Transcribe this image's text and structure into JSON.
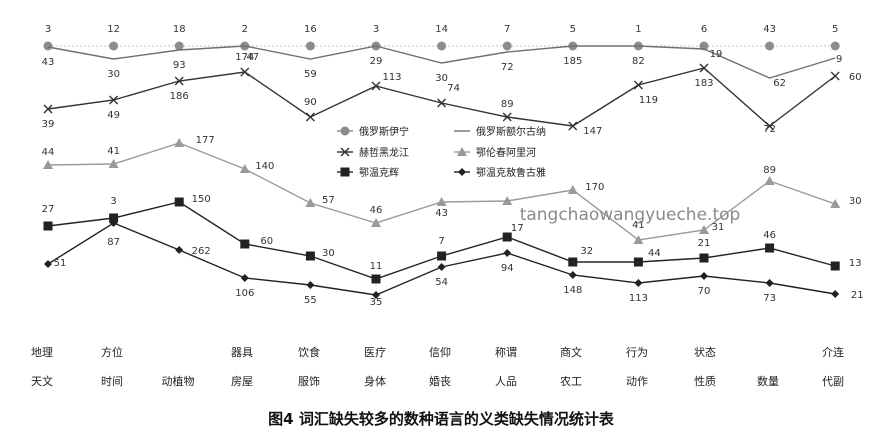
{
  "chart_data": {
    "type": "line",
    "title": "",
    "xlabel": "",
    "ylabel": "",
    "grid": false,
    "legend_position": "center",
    "categories": [
      [
        "地理",
        "天文"
      ],
      [
        "方位",
        "时间"
      ],
      [
        "",
        "动植物"
      ],
      [
        "器具",
        "房屋"
      ],
      [
        "饮食",
        "服饰"
      ],
      [
        "医疗",
        "身体"
      ],
      [
        "信仰",
        "婚丧"
      ],
      [
        "称谓",
        "人品"
      ],
      [
        "商文",
        "农工"
      ],
      [
        "行为",
        "动作"
      ],
      [
        "状态",
        "性质"
      ],
      [
        "",
        "数量"
      ],
      [
        "介连",
        "代副"
      ]
    ],
    "series": [
      {
        "name": "俄罗斯伊宁",
        "color": "#8c8c8c",
        "marker": "circle",
        "labels": [
          "3",
          "12",
          "18",
          "2",
          "16",
          "3",
          "14",
          "7",
          "5",
          "1",
          "6",
          "43",
          "5"
        ],
        "values": [
          3,
          12,
          18,
          2,
          16,
          3,
          14,
          7,
          5,
          1,
          6,
          43,
          5
        ]
      },
      {
        "name": "俄罗斯额尔古纳",
        "color": "#707070",
        "marker": "none",
        "labels": [
          "43",
          "30",
          "93",
          "47",
          "59",
          "29",
          "30",
          "72",
          "185",
          "82",
          "19",
          "62",
          "9"
        ],
        "values": [
          43,
          30,
          93,
          47,
          59,
          29,
          30,
          72,
          185,
          82,
          19,
          62,
          9
        ]
      },
      {
        "name": "赫哲黑龙江",
        "color": "#333333",
        "marker": "x",
        "labels": [
          "39",
          "49",
          "186",
          "174",
          "90",
          "113",
          "74",
          "89",
          "147",
          "119",
          "183",
          "72",
          "60"
        ],
        "values": [
          39,
          49,
          186,
          174,
          90,
          113,
          74,
          89,
          147,
          119,
          183,
          72,
          60
        ]
      },
      {
        "name": "鄂伦春阿里河",
        "color": "#9a9a9a",
        "marker": "triangle",
        "labels": [
          "44",
          "41",
          "177",
          "140",
          "57",
          "46",
          "43",
          "",
          "170",
          "41",
          "31",
          "89",
          "30"
        ],
        "values": [
          44,
          41,
          177,
          140,
          57,
          46,
          43,
          null,
          170,
          41,
          31,
          89,
          30
        ]
      },
      {
        "name": "鄂温克辉",
        "color": "#222222",
        "marker": "square",
        "labels": [
          "27",
          "3",
          "150",
          "60",
          "30",
          "11",
          "7",
          "17",
          "32",
          "44",
          "21",
          "46",
          "13"
        ],
        "values": [
          27,
          3,
          150,
          60,
          30,
          11,
          7,
          17,
          32,
          44,
          21,
          46,
          13
        ]
      },
      {
        "name": "鄂温克敖鲁古雅",
        "color": "#222222",
        "marker": "diamond",
        "labels": [
          "51",
          "87",
          "262",
          "106",
          "55",
          "35",
          "54",
          "94",
          "148",
          "113",
          "70",
          "73",
          "21"
        ],
        "values": [
          51,
          87,
          262,
          106,
          55,
          35,
          54,
          94,
          148,
          113,
          70,
          73,
          21
        ]
      }
    ]
  },
  "caption": "图4  词汇缺失较多的数种语言的义类缺失情况统计表",
  "watermark": "tangchaowangyueche.top"
}
